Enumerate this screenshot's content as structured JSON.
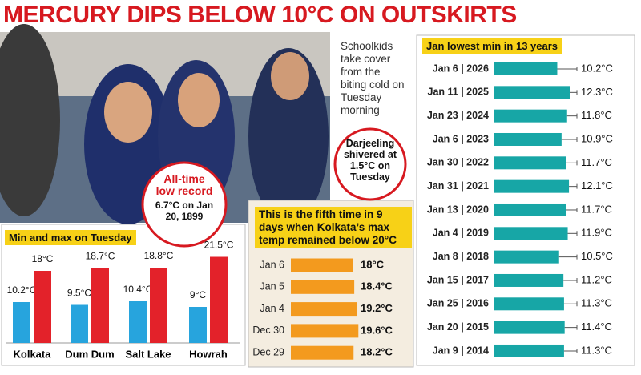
{
  "headline": "MERCURY DIPS BELOW 10°C ON OUTSKIRTS",
  "photo_caption": "Schoolkids take cover from the biting cold on Tuesday morning",
  "callouts": [
    {
      "title": "All-time low record",
      "text": "6.7°C on Jan 20, 1899"
    },
    {
      "text": "Darjeeling shivered at 1.5°C on Tuesday"
    }
  ],
  "chart_data": [
    {
      "type": "bar",
      "title": "Min and max on Tuesday",
      "categories": [
        "Kolkata",
        "Dum Dum",
        "Salt Lake",
        "Howrah"
      ],
      "series": [
        {
          "color": "#27a4dd",
          "values": [
            10.2,
            9.5,
            10.4,
            9
          ],
          "value_labels": [
            "10.2°C",
            "9.5°C",
            "10.4°C",
            "9°C"
          ]
        },
        {
          "color": "#e3222a",
          "values": [
            18,
            18.7,
            18.8,
            21.5
          ],
          "value_labels": [
            "18°C",
            "18.7°C",
            "18.8°C",
            "21.5°C"
          ]
        }
      ],
      "ylim": [
        0,
        25
      ]
    },
    {
      "type": "hbar",
      "title": "This is the fifth time in 9 days when Kolkata’s max temp remained below 20°C",
      "categories": [
        "Jan 6",
        "Jan 5",
        "Jan 4",
        "Dec 30",
        "Dec 29"
      ],
      "values": [
        18,
        18.4,
        19.2,
        19.6,
        18.2
      ],
      "value_labels": [
        "18°C",
        "18.4°C",
        "19.2°C",
        "19.6°C",
        "18.2°C"
      ],
      "color": "#f39a1e",
      "xlim": [
        0,
        20
      ]
    },
    {
      "type": "hbar",
      "title": "Jan lowest min in 13 years",
      "categories": [
        "Jan 6 | 2026",
        "Jan 11 | 2025",
        "Jan 23 | 2024",
        "Jan 6 | 2023",
        "Jan 30 | 2022",
        "Jan 31 | 2021",
        "Jan 13 | 2020",
        "Jan 4 | 2019",
        "Jan 8 | 2018",
        "Jan 15 | 2017",
        "Jan 25 | 2016",
        "Jan 20 | 2015",
        "Jan 9 | 2014"
      ],
      "values": [
        10.2,
        12.3,
        11.8,
        10.9,
        11.7,
        12.1,
        11.7,
        11.9,
        10.5,
        11.2,
        11.3,
        11.4,
        11.3
      ],
      "value_labels": [
        "10.2°C",
        "12.3°C",
        "11.8°C",
        "10.9°C",
        "11.7°C",
        "12.1°C",
        "11.7°C",
        "11.9°C",
        "10.5°C",
        "11.2°C",
        "11.3°C",
        "11.4°C",
        "11.3°C"
      ],
      "color": "#17a6a6",
      "xlim": [
        0,
        13
      ]
    }
  ]
}
